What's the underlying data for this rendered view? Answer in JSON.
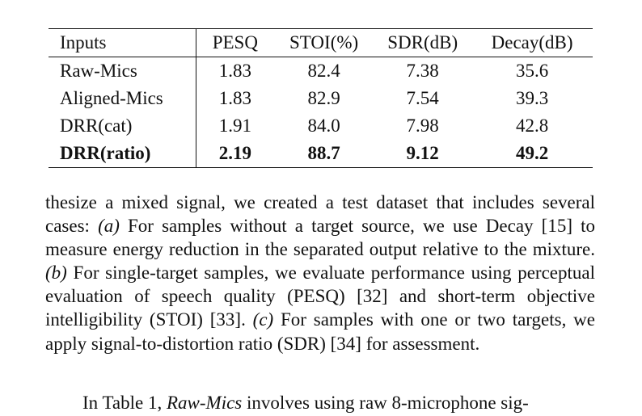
{
  "table": {
    "headers": [
      "Inputs",
      "PESQ",
      "STOI(%)",
      "SDR(dB)",
      "Decay(dB)"
    ],
    "rows": [
      {
        "input": "Raw-Mics",
        "pesq": "1.83",
        "stoi": "82.4",
        "sdr": "7.38",
        "decay": "35.6",
        "bold": false
      },
      {
        "input": "Aligned-Mics",
        "pesq": "1.83",
        "stoi": "82.9",
        "sdr": "7.54",
        "decay": "39.3",
        "bold": false
      },
      {
        "input": "DRR(cat)",
        "pesq": "1.91",
        "stoi": "84.0",
        "sdr": "7.98",
        "decay": "42.8",
        "bold": false
      },
      {
        "input": "DRR(ratio)",
        "pesq": "2.19",
        "stoi": "88.7",
        "sdr": "9.12",
        "decay": "49.2",
        "bold": true
      }
    ]
  },
  "paragraph1": {
    "s1": "thesize a mixed signal, we created a test dataset that includes several cases: ",
    "a": "(a)",
    "s2": " For samples without a target source, we use Decay [15] to measure energy reduction in the separated output relative to the mixture. ",
    "b": "(b)",
    "s3": " For single-target samples, we evaluate performance using perceptual evaluation of speech quality (PESQ) [32] and short-term objective intelligibility (STOI) [33]. ",
    "c": "(c)",
    "s4": " For samples with one or two targets, we apply signal-to-distortion ratio (SDR) [34] for assessment."
  },
  "paragraph2": {
    "s1": "In Table 1, ",
    "em": "Raw-Mics",
    "s2": " involves using raw 8-microphone sig-"
  }
}
